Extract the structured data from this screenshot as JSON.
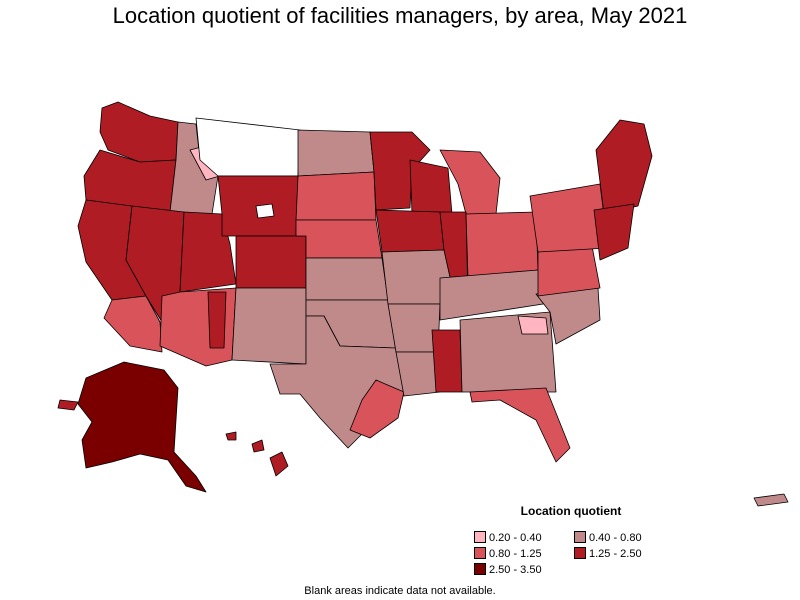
{
  "title": "Location quotient of facilities managers, by area, May 2021",
  "legend": {
    "title": "Location quotient",
    "items": [
      {
        "label": "0.20 - 0.40",
        "color": "#ffb6c1"
      },
      {
        "label": "0.40 - 0.80",
        "color": "#c08a8a"
      },
      {
        "label": "0.80 - 1.25",
        "color": "#d9535b"
      },
      {
        "label": "1.25 - 2.50",
        "color": "#b01c24"
      },
      {
        "label": "2.50 - 3.50",
        "color": "#7a0000"
      }
    ]
  },
  "note": "Blank areas indicate data not available.",
  "colors": {
    "no_data": "#ffffff",
    "outline": "#000000"
  }
}
